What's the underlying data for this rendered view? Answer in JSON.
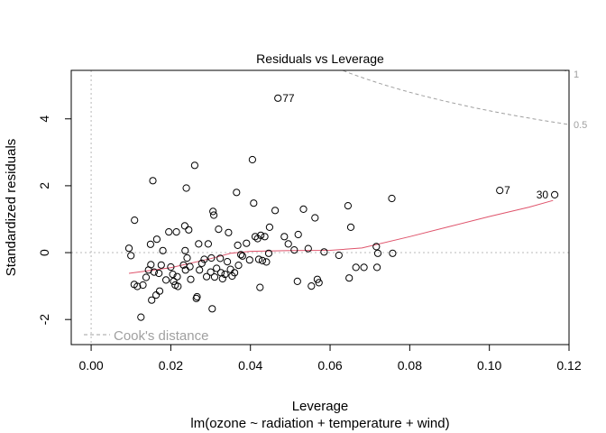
{
  "chart_data": {
    "type": "scatter",
    "title": "Residuals vs Leverage",
    "xlabel": "Leverage",
    "ylabel": "Standardized residuals",
    "subtitle": "lm(ozone ~ radiation + temperature + wind)",
    "xlim": [
      -0.005,
      0.12
    ],
    "ylim": [
      -2.75,
      5.45
    ],
    "xticks": [
      "0.00",
      "0.02",
      "0.04",
      "0.06",
      "0.08",
      "0.10",
      "0.12"
    ],
    "yticks": [
      "-2",
      "0",
      "2",
      "4"
    ],
    "grid": false,
    "legend": {
      "label": "Cook's distance",
      "position": "bottom-left"
    },
    "cook_contour_labels": [
      "1",
      "0.5"
    ],
    "point_labels": [
      {
        "text": "77",
        "x": 0.0469,
        "y": 4.62
      },
      {
        "text": "7",
        "x": 0.1026,
        "y": 1.86
      },
      {
        "text": "30",
        "x": 0.1164,
        "y": 1.73
      }
    ],
    "smoother": [
      [
        0.0095,
        -0.62
      ],
      [
        0.02,
        -0.45
      ],
      [
        0.03,
        -0.18
      ],
      [
        0.035,
        -0.02
      ],
      [
        0.04,
        0.04
      ],
      [
        0.05,
        0.06
      ],
      [
        0.06,
        0.07
      ],
      [
        0.068,
        0.14
      ],
      [
        0.08,
        0.48
      ],
      [
        0.09,
        0.78
      ],
      [
        0.1,
        1.08
      ],
      [
        0.11,
        1.36
      ],
      [
        0.116,
        1.56
      ]
    ],
    "points": [
      [
        0.0095,
        0.13
      ],
      [
        0.01,
        -0.09
      ],
      [
        0.0108,
        -0.95
      ],
      [
        0.0109,
        0.97
      ],
      [
        0.0116,
        -1.01
      ],
      [
        0.0125,
        -1.93
      ],
      [
        0.013,
        -0.97
      ],
      [
        0.0138,
        -0.74
      ],
      [
        0.0144,
        -0.52
      ],
      [
        0.0149,
        0.25
      ],
      [
        0.015,
        -0.36
      ],
      [
        0.0152,
        -1.42
      ],
      [
        0.0155,
        2.15
      ],
      [
        0.0158,
        -0.58
      ],
      [
        0.0163,
        -1.27
      ],
      [
        0.0165,
        0.4
      ],
      [
        0.017,
        -0.62
      ],
      [
        0.0172,
        -1.15
      ],
      [
        0.0176,
        -0.37
      ],
      [
        0.018,
        0.06
      ],
      [
        0.0188,
        -0.82
      ],
      [
        0.0195,
        0.62
      ],
      [
        0.02,
        -0.43
      ],
      [
        0.0205,
        -0.65
      ],
      [
        0.0207,
        -0.86
      ],
      [
        0.0211,
        -0.97
      ],
      [
        0.0214,
        0.62
      ],
      [
        0.0216,
        -0.72
      ],
      [
        0.0218,
        -1.01
      ],
      [
        0.0232,
        -0.37
      ],
      [
        0.0235,
        0.8
      ],
      [
        0.0236,
        0.06
      ],
      [
        0.0237,
        -0.52
      ],
      [
        0.0239,
        1.93
      ],
      [
        0.0241,
        -0.16
      ],
      [
        0.0245,
        0.68
      ],
      [
        0.0248,
        -0.42
      ],
      [
        0.025,
        -0.8
      ],
      [
        0.026,
        2.61
      ],
      [
        0.0264,
        -1.37
      ],
      [
        0.0266,
        -1.32
      ],
      [
        0.027,
        0.26
      ],
      [
        0.0272,
        -0.52
      ],
      [
        0.0278,
        -0.32
      ],
      [
        0.0284,
        -0.2
      ],
      [
        0.029,
        -0.72
      ],
      [
        0.0294,
        0.26
      ],
      [
        0.03,
        -0.58
      ],
      [
        0.0302,
        -0.16
      ],
      [
        0.0304,
        -1.68
      ],
      [
        0.0306,
        1.23
      ],
      [
        0.0308,
        1.12
      ],
      [
        0.031,
        -0.73
      ],
      [
        0.0315,
        -0.47
      ],
      [
        0.032,
        0.7
      ],
      [
        0.0324,
        -0.17
      ],
      [
        0.0326,
        -0.6
      ],
      [
        0.033,
        -0.78
      ],
      [
        0.0336,
        -0.65
      ],
      [
        0.0342,
        -0.27
      ],
      [
        0.0345,
        0.6
      ],
      [
        0.035,
        -0.5
      ],
      [
        0.0354,
        -0.7
      ],
      [
        0.036,
        -0.6
      ],
      [
        0.0365,
        1.8
      ],
      [
        0.0368,
        0.22
      ],
      [
        0.037,
        -0.38
      ],
      [
        0.0376,
        -0.06
      ],
      [
        0.038,
        -0.1
      ],
      [
        0.039,
        0.28
      ],
      [
        0.0398,
        -0.22
      ],
      [
        0.0405,
        2.78
      ],
      [
        0.0408,
        1.48
      ],
      [
        0.0412,
        0.48
      ],
      [
        0.0418,
        0.42
      ],
      [
        0.0421,
        -0.2
      ],
      [
        0.0424,
        -1.04
      ],
      [
        0.0426,
        0.52
      ],
      [
        0.043,
        -0.24
      ],
      [
        0.0436,
        0.48
      ],
      [
        0.044,
        -0.28
      ],
      [
        0.0446,
        -0.02
      ],
      [
        0.0448,
        0.76
      ],
      [
        0.0462,
        1.26
      ],
      [
        0.0469,
        4.62
      ],
      [
        0.0485,
        0.48
      ],
      [
        0.0495,
        0.26
      ],
      [
        0.051,
        0.08
      ],
      [
        0.0518,
        -0.86
      ],
      [
        0.052,
        0.54
      ],
      [
        0.0533,
        1.3
      ],
      [
        0.0545,
        0.12
      ],
      [
        0.0553,
        -1.0
      ],
      [
        0.0562,
        1.04
      ],
      [
        0.0568,
        -0.8
      ],
      [
        0.0572,
        -0.9
      ],
      [
        0.0585,
        0.02
      ],
      [
        0.0622,
        -0.08
      ],
      [
        0.0645,
        1.4
      ],
      [
        0.0648,
        -0.76
      ],
      [
        0.0652,
        0.76
      ],
      [
        0.0665,
        -0.44
      ],
      [
        0.0685,
        -0.44
      ],
      [
        0.0716,
        0.18
      ],
      [
        0.0718,
        -0.44
      ],
      [
        0.072,
        -0.02
      ],
      [
        0.0755,
        1.62
      ],
      [
        0.0757,
        -0.02
      ],
      [
        0.1026,
        1.86
      ],
      [
        0.1164,
        1.73
      ]
    ]
  }
}
